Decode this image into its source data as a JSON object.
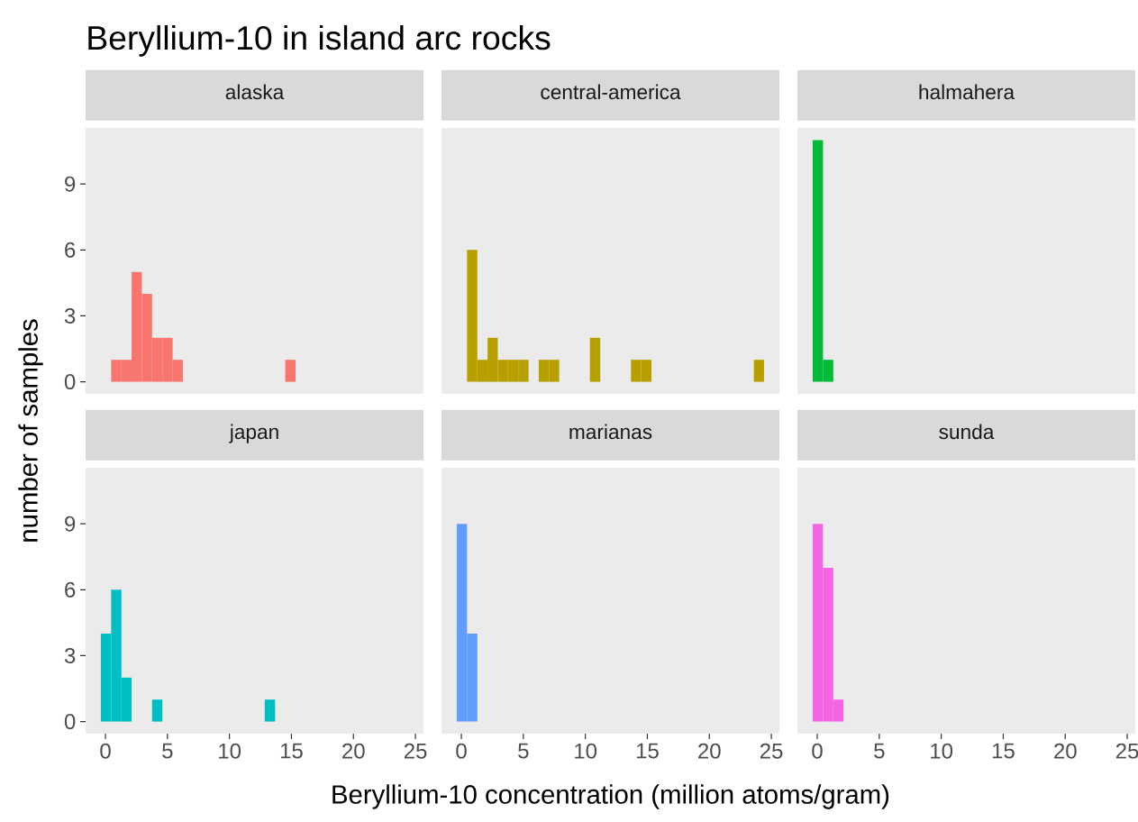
{
  "chart_data": [
    {
      "type": "histogram",
      "title": "Beryllium-10 in island arc rocks",
      "subtitle": "alaska",
      "ylabel": "number of samples",
      "color": "#F8766D",
      "bins": [
        -0.37,
        0.46,
        1.29,
        2.11,
        2.94,
        3.76,
        4.59,
        5.42,
        6.24,
        7.07,
        7.89,
        8.72,
        9.55,
        10.37,
        11.2,
        12.02,
        12.85,
        13.68,
        14.5,
        15.33,
        16.15,
        16.98,
        17.81,
        18.63,
        19.46,
        20.28,
        21.11,
        21.94,
        22.76,
        23.59,
        24.41
      ],
      "values": [
        0,
        1,
        1,
        5,
        4,
        2,
        2,
        1,
        0,
        0,
        0,
        0,
        0,
        0,
        0,
        0,
        0,
        0,
        1,
        0,
        0,
        0,
        0,
        0,
        0,
        0,
        0,
        0,
        0,
        0
      ],
      "xlim": [
        -1.6,
        25.65
      ],
      "ylim": [
        -0.55,
        11.55
      ],
      "yticks": [
        0,
        3,
        6,
        9
      ],
      "tick_labels": "y"
    },
    {
      "type": "histogram",
      "subtitle": "central-america",
      "color": "#B79F00",
      "bins": [
        -0.37,
        0.46,
        1.29,
        2.11,
        2.94,
        3.76,
        4.59,
        5.42,
        6.24,
        7.07,
        7.89,
        8.72,
        9.55,
        10.37,
        11.2,
        12.02,
        12.85,
        13.68,
        14.5,
        15.33,
        16.15,
        16.98,
        17.81,
        18.63,
        19.46,
        20.28,
        21.11,
        21.94,
        22.76,
        23.59,
        24.41
      ],
      "values": [
        0,
        6,
        1,
        2,
        1,
        1,
        1,
        0,
        1,
        1,
        0,
        0,
        0,
        2,
        0,
        0,
        0,
        1,
        1,
        0,
        0,
        0,
        0,
        0,
        0,
        0,
        0,
        0,
        0,
        1
      ],
      "xlim": [
        -1.6,
        25.65
      ],
      "ylim": [
        -0.55,
        11.55
      ],
      "tick_labels": false
    },
    {
      "type": "histogram",
      "subtitle": "halmahera",
      "color": "#00BA38",
      "bins": [
        -0.37,
        0.46,
        1.29,
        2.11,
        2.94,
        3.76,
        4.59,
        5.42,
        6.24,
        7.07,
        7.89,
        8.72,
        9.55,
        10.37,
        11.2,
        12.02,
        12.85,
        13.68,
        14.5,
        15.33,
        16.15,
        16.98,
        17.81,
        18.63,
        19.46,
        20.28,
        21.11,
        21.94,
        22.76,
        23.59,
        24.41
      ],
      "values": [
        11,
        1,
        0,
        0,
        0,
        0,
        0,
        0,
        0,
        0,
        0,
        0,
        0,
        0,
        0,
        0,
        0,
        0,
        0,
        0,
        0,
        0,
        0,
        0,
        0,
        0,
        0,
        0,
        0,
        0
      ],
      "xlim": [
        -1.6,
        25.65
      ],
      "ylim": [
        -0.55,
        11.55
      ],
      "tick_labels": false
    },
    {
      "type": "histogram",
      "subtitle": "japan",
      "color": "#00BFC4",
      "bins": [
        -0.37,
        0.46,
        1.29,
        2.11,
        2.94,
        3.76,
        4.59,
        5.42,
        6.24,
        7.07,
        7.89,
        8.72,
        9.55,
        10.37,
        11.2,
        12.02,
        12.85,
        13.68,
        14.5,
        15.33,
        16.15,
        16.98,
        17.81,
        18.63,
        19.46,
        20.28,
        21.11,
        21.94,
        22.76,
        23.59,
        24.41
      ],
      "values": [
        4,
        6,
        2,
        0,
        0,
        1,
        0,
        0,
        0,
        0,
        0,
        0,
        0,
        0,
        0,
        0,
        1,
        0,
        0,
        0,
        0,
        0,
        0,
        0,
        0,
        0,
        0,
        0,
        0,
        0
      ],
      "xlim": [
        -1.6,
        25.65
      ],
      "ylim": [
        -0.55,
        11.55
      ],
      "xticks": [
        0,
        5,
        10,
        15,
        20,
        25
      ],
      "yticks": [
        0,
        3,
        6,
        9
      ]
    },
    {
      "type": "histogram",
      "subtitle": "marianas",
      "xlabel": "Beryllium-10 concentration (million atoms/gram)",
      "color": "#619CFF",
      "bins": [
        -0.37,
        0.46,
        1.29,
        2.11,
        2.94,
        3.76,
        4.59,
        5.42,
        6.24,
        7.07,
        7.89,
        8.72,
        9.55,
        10.37,
        11.2,
        12.02,
        12.85,
        13.68,
        14.5,
        15.33,
        16.15,
        16.98,
        17.81,
        18.63,
        19.46,
        20.28,
        21.11,
        21.94,
        22.76,
        23.59,
        24.41
      ],
      "values": [
        9,
        4,
        0,
        0,
        0,
        0,
        0,
        0,
        0,
        0,
        0,
        0,
        0,
        0,
        0,
        0,
        0,
        0,
        0,
        0,
        0,
        0,
        0,
        0,
        0,
        0,
        0,
        0,
        0,
        0
      ],
      "xlim": [
        -1.6,
        25.65
      ],
      "ylim": [
        -0.55,
        11.55
      ],
      "xticks": [
        0,
        5,
        10,
        15,
        20,
        25
      ],
      "tick_labels": "x"
    },
    {
      "type": "histogram",
      "subtitle": "sunda",
      "color": "#F564E3",
      "bins": [
        -0.37,
        0.46,
        1.29,
        2.11,
        2.94,
        3.76,
        4.59,
        5.42,
        6.24,
        7.07,
        7.89,
        8.72,
        9.55,
        10.37,
        11.2,
        12.02,
        12.85,
        13.68,
        14.5,
        15.33,
        16.15,
        16.98,
        17.81,
        18.63,
        19.46,
        20.28,
        21.11,
        21.94,
        22.76,
        23.59,
        24.41
      ],
      "values": [
        9,
        7,
        1,
        0,
        0,
        0,
        0,
        0,
        0,
        0,
        0,
        0,
        0,
        0,
        0,
        0,
        0,
        0,
        0,
        0,
        0,
        0,
        0,
        0,
        0,
        0,
        0,
        0,
        0,
        0
      ],
      "xlim": [
        -1.6,
        25.65
      ],
      "ylim": [
        -0.55,
        11.55
      ],
      "xticks": [
        0,
        5,
        10,
        15,
        20,
        25
      ],
      "tick_labels": "x"
    }
  ]
}
